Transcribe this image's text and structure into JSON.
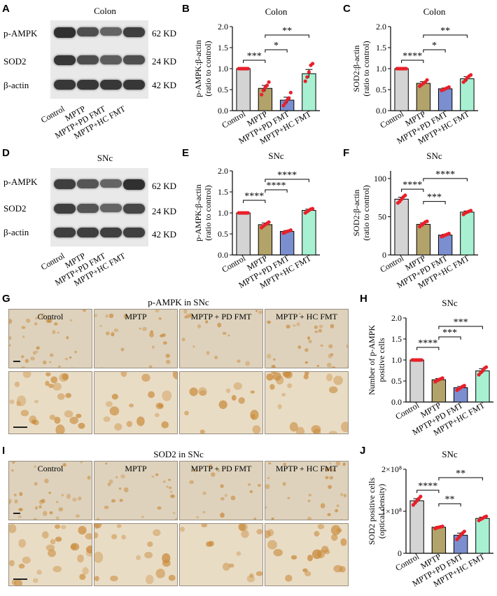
{
  "panel_letters": [
    "A",
    "B",
    "C",
    "D",
    "E",
    "F",
    "G",
    "H",
    "I",
    "J"
  ],
  "blots": [
    {
      "letter": "A",
      "title": "Colon",
      "rows": [
        {
          "label": "p-AMPK",
          "kd": "62 KD",
          "intensity": [
            0.95,
            0.75,
            0.6,
            0.85
          ]
        },
        {
          "label": "SOD2",
          "kd": "24 KD",
          "intensity": [
            0.9,
            0.75,
            0.65,
            0.75
          ]
        },
        {
          "label": "β-actin",
          "kd": "42 KD",
          "intensity": [
            0.9,
            0.9,
            0.9,
            0.9
          ]
        }
      ],
      "lanes": [
        "Control",
        "MPTP",
        "MPTP+PD FMT",
        "MPTP+HC FMT"
      ]
    },
    {
      "letter": "D",
      "title": "SNc",
      "rows": [
        {
          "label": "p-AMPK",
          "kd": "62 KD",
          "intensity": [
            0.85,
            0.7,
            0.6,
            0.95
          ]
        },
        {
          "label": "SOD2",
          "kd": "24 KD",
          "intensity": [
            0.85,
            0.7,
            0.6,
            0.8
          ]
        },
        {
          "label": "β-actin",
          "kd": "42 KD",
          "intensity": [
            0.85,
            0.85,
            0.85,
            0.85
          ]
        }
      ],
      "lanes": [
        "Control",
        "MPTP",
        "MPTP+PD FMT",
        "MPTP+HC FMT"
      ]
    }
  ],
  "histology": [
    {
      "letter": "G",
      "title": "p-AMPK in SNc",
      "columns": [
        "Control",
        "MPTP",
        "MPTP + PD FMT",
        "MPTP + HC FMT"
      ]
    },
    {
      "letter": "I",
      "title": "SOD2 in SNc",
      "columns": [
        "Control",
        "MPTP",
        "MPTP + PD FMT",
        "MPTP + HC FMT"
      ]
    }
  ],
  "colors": {
    "control": "#d4d4d4",
    "mptp": "#b2a36a",
    "pd_fmt": "#7b8fd0",
    "hc_fmt": "#a8f0d2",
    "dots": "#e8202a",
    "tissue_light": "#e8dcc6",
    "stain": "#c98a3a"
  },
  "chart_data": [
    {
      "letter": "B",
      "type": "bar",
      "title": "Colon",
      "categories": [
        "Control",
        "MPTP",
        "MPTP+PD FMT",
        "MPTP+HC FMT"
      ],
      "values": [
        1.0,
        0.53,
        0.25,
        0.88
      ],
      "errors": [
        0.0,
        0.07,
        0.07,
        0.1
      ],
      "points": [
        [
          1,
          1,
          1,
          1,
          1,
          1
        ],
        [
          0.38,
          0.48,
          0.55,
          0.6,
          0.68
        ],
        [
          0.12,
          0.18,
          0.25,
          0.3,
          0.43
        ],
        [
          0.7,
          0.8,
          0.92,
          1.08,
          1.12
        ]
      ],
      "ylabel": "p-AMPK:β-actin\n(ratio to control)",
      "ylim": [
        0,
        2.0
      ],
      "yticks": [
        "0.0",
        "0.5",
        "1.0",
        "1.5",
        "2.0"
      ],
      "yticks_values": [
        0,
        0.5,
        1.0,
        1.5,
        2.0
      ],
      "comparisons": [
        {
          "from": 0,
          "to": 1,
          "label": "***",
          "y": 1.2
        },
        {
          "from": 1,
          "to": 2,
          "label": "*",
          "y": 1.45
        },
        {
          "from": 1,
          "to": 3,
          "label": "**",
          "y": 1.8
        }
      ]
    },
    {
      "letter": "C",
      "type": "bar",
      "title": "Colon",
      "categories": [
        "Control",
        "MPTP",
        "MPTP+PD FMT",
        "MPTP+HC FMT"
      ],
      "values": [
        1.0,
        0.65,
        0.52,
        0.76
      ],
      "errors": [
        0.0,
        0.04,
        0.02,
        0.05
      ],
      "points": [
        [
          1,
          1,
          1,
          1,
          1,
          1
        ],
        [
          0.58,
          0.62,
          0.65,
          0.68,
          0.73
        ],
        [
          0.48,
          0.5,
          0.52,
          0.54,
          0.56
        ],
        [
          0.68,
          0.72,
          0.78,
          0.82,
          0.85
        ]
      ],
      "ylabel": "SOD2:β-actin\n(ratio to control)",
      "ylim": [
        0,
        2.0
      ],
      "yticks": [
        "0.0",
        "0.5",
        "1.0",
        "1.5",
        "2.0"
      ],
      "yticks_values": [
        0,
        0.5,
        1.0,
        1.5,
        2.0
      ],
      "comparisons": [
        {
          "from": 0,
          "to": 1,
          "label": "****",
          "y": 1.2
        },
        {
          "from": 1,
          "to": 2,
          "label": "*",
          "y": 1.45
        },
        {
          "from": 1,
          "to": 3,
          "label": "**",
          "y": 1.8
        }
      ]
    },
    {
      "letter": "E",
      "type": "bar",
      "title": "SNc",
      "categories": [
        "Control",
        "MPTP",
        "MPTP+PD FMT",
        "MPTP+HC FMT"
      ],
      "values": [
        1.0,
        0.72,
        0.56,
        1.06
      ],
      "errors": [
        0.0,
        0.04,
        0.02,
        0.03
      ],
      "points": [
        [
          1,
          1,
          1,
          1,
          1,
          1
        ],
        [
          0.65,
          0.69,
          0.72,
          0.75,
          0.78
        ],
        [
          0.52,
          0.54,
          0.56,
          0.57,
          0.59
        ],
        [
          1.0,
          1.03,
          1.06,
          1.09,
          1.1
        ]
      ],
      "ylabel": "p-AMPK:β-actin\n(ratio to control)",
      "ylim": [
        0,
        2.0
      ],
      "yticks": [
        "0.0",
        "0.5",
        "1.0",
        "1.5",
        "2.0"
      ],
      "yticks_values": [
        0,
        0.5,
        1.0,
        1.5,
        2.0
      ],
      "comparisons": [
        {
          "from": 0,
          "to": 1,
          "label": "****",
          "y": 1.3
        },
        {
          "from": 1,
          "to": 2,
          "label": "****",
          "y": 1.55
        },
        {
          "from": 1,
          "to": 3,
          "label": "****",
          "y": 1.8
        }
      ]
    },
    {
      "letter": "F",
      "type": "bar",
      "title": "SNc",
      "categories": [
        "Control",
        "MPTP",
        "MPTP+PD FMT",
        "MPTP+HC FMT"
      ],
      "values": [
        73,
        40,
        26,
        56
      ],
      "errors": [
        2.5,
        2,
        1,
        1.5
      ],
      "points": [
        [
          68,
          70,
          73,
          76,
          78
        ],
        [
          37,
          39,
          41,
          43,
          44
        ],
        [
          24,
          25,
          26,
          27,
          28
        ],
        [
          53,
          55,
          56,
          57,
          58
        ]
      ],
      "ylabel": "SOD2:β-actin\n(ratio to control)",
      "ylim": [
        0,
        110
      ],
      "yticks": [
        "0",
        "50",
        "100"
      ],
      "yticks_values": [
        0,
        50,
        100
      ],
      "comparisons": [
        {
          "from": 0,
          "to": 1,
          "label": "****",
          "y": 86
        },
        {
          "from": 1,
          "to": 2,
          "label": "***",
          "y": 70
        },
        {
          "from": 1,
          "to": 3,
          "label": "****",
          "y": 100
        }
      ]
    },
    {
      "letter": "H",
      "type": "bar",
      "title": "SNc",
      "categories": [
        "Control",
        "MPTP",
        "MPTP+PD FMT",
        "MPTP+HC FMT"
      ],
      "values": [
        1.0,
        0.53,
        0.34,
        0.74
      ],
      "errors": [
        0.0,
        0.03,
        0.03,
        0.05
      ],
      "points": [
        [
          1,
          1,
          1,
          1,
          1,
          1
        ],
        [
          0.48,
          0.51,
          0.53,
          0.55,
          0.57
        ],
        [
          0.28,
          0.31,
          0.34,
          0.37,
          0.39
        ],
        [
          0.65,
          0.7,
          0.74,
          0.8,
          0.83
        ]
      ],
      "ylabel": "Number of p-AMPK\npositive cells",
      "ylim": [
        0,
        2.0
      ],
      "yticks": [
        "0.0",
        "0.5",
        "1.0",
        "1.5",
        "2.0"
      ],
      "yticks_values": [
        0,
        0.5,
        1.0,
        1.5,
        2.0
      ],
      "comparisons": [
        {
          "from": 0,
          "to": 1,
          "label": "****",
          "y": 1.3
        },
        {
          "from": 1,
          "to": 2,
          "label": "***",
          "y": 1.55
        },
        {
          "from": 1,
          "to": 3,
          "label": "***",
          "y": 1.8
        }
      ]
    },
    {
      "letter": "J",
      "type": "bar",
      "title": "SNc",
      "categories": [
        "Control",
        "MPTP",
        "MPTP+PD FMT",
        "MPTP+HC FMT"
      ],
      "values": [
        125000000,
        62000000,
        43000000,
        83000000
      ],
      "errors": [
        5000000,
        2000000,
        5000000,
        3000000
      ],
      "points": [
        [
          115000000,
          120000000,
          125000000,
          130000000,
          135000000
        ],
        [
          59000000,
          61000000,
          62000000,
          63000000,
          64000000
        ],
        [
          33000000,
          38000000,
          43000000,
          48000000,
          52000000
        ],
        [
          78000000,
          81000000,
          83000000,
          86000000,
          88000000
        ]
      ],
      "ylabel": "SOD2 positive cells\n(optical density)",
      "ylim": [
        0,
        200000000
      ],
      "yticks": [
        "0",
        "1×10⁸",
        "2×10⁸"
      ],
      "yticks_values": [
        0,
        100000000,
        200000000
      ],
      "comparisons": [
        {
          "from": 0,
          "to": 1,
          "label": "****",
          "y": 150000000
        },
        {
          "from": 1,
          "to": 2,
          "label": "**",
          "y": 118000000
        },
        {
          "from": 1,
          "to": 3,
          "label": "**",
          "y": 180000000
        }
      ]
    }
  ]
}
